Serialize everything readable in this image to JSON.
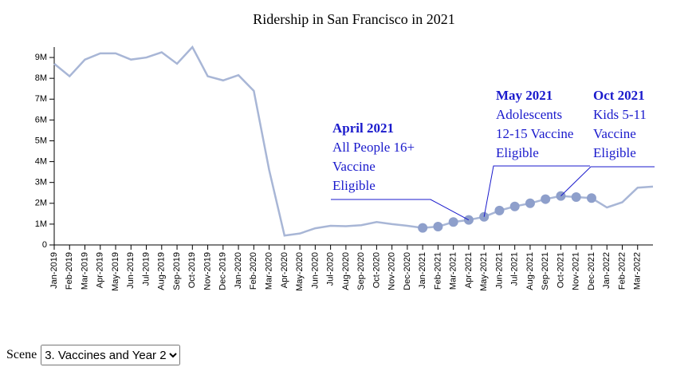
{
  "chart_data": {
    "type": "line",
    "title": "Ridership in San Francisco in 2021",
    "categories": [
      "Jan-2019",
      "Feb-2019",
      "Mar-2019",
      "Apr-2019",
      "May-2019",
      "Jun-2019",
      "Jul-2019",
      "Aug-2019",
      "Sep-2019",
      "Oct-2019",
      "Nov-2019",
      "Dec-2019",
      "Jan-2020",
      "Feb-2020",
      "Mar-2020",
      "Apr-2020",
      "May-2020",
      "Jun-2020",
      "Jul-2020",
      "Aug-2020",
      "Sep-2020",
      "Oct-2020",
      "Nov-2020",
      "Dec-2020",
      "Jan-2021",
      "Feb-2021",
      "Mar-2021",
      "Apr-2021",
      "May-2021",
      "Jun-2021",
      "Jul-2021",
      "Aug-2021",
      "Sep-2021",
      "Oct-2021",
      "Nov-2021",
      "Dec-2021",
      "Jan-2022",
      "Feb-2022",
      "Mar-2022",
      null
    ],
    "values": [
      8700000,
      8100000,
      8900000,
      9200000,
      9200000,
      8900000,
      9000000,
      9250000,
      8700000,
      9500000,
      8100000,
      7900000,
      8150000,
      7400000,
      3600000,
      450000,
      550000,
      800000,
      920000,
      900000,
      950000,
      1100000,
      1000000,
      920000,
      820000,
      880000,
      1100000,
      1200000,
      1350000,
      1650000,
      1850000,
      2000000,
      2200000,
      2350000,
      2300000,
      2250000,
      1800000,
      2050000,
      2750000,
      2800000
    ],
    "color": "#a8b6d6",
    "marker_color": "#8e9fcb",
    "markers_from": "Jan-2021",
    "markers_to": "Dec-2021",
    "ylim": [
      0,
      9500000
    ],
    "yticks": [
      0,
      {
        "value": 1000000,
        "label": "1M"
      },
      {
        "value": 2000000,
        "label": "2M"
      },
      {
        "value": 3000000,
        "label": "3M"
      },
      {
        "value": 4000000,
        "label": "4M"
      },
      {
        "value": 5000000,
        "label": "5M"
      },
      {
        "value": 6000000,
        "label": "6M"
      },
      {
        "value": 7000000,
        "label": "7M"
      },
      {
        "value": 8000000,
        "label": "8M"
      },
      {
        "value": 9000000,
        "label": "9M"
      }
    ],
    "annotations": [
      {
        "category": "Apr-2021",
        "title": "April 2021",
        "lines": [
          "All People 16+",
          "Vaccine",
          "Eligible"
        ]
      },
      {
        "category": "May-2021",
        "title": "May 2021",
        "lines": [
          "Adolescents",
          "12-15 Vaccine",
          "Eligible"
        ]
      },
      {
        "category": "Oct-2021",
        "title": "Oct 2021",
        "lines": [
          "Kids 5-11",
          "Vaccine",
          "Eligible"
        ]
      }
    ]
  },
  "controls": {
    "label": "Scene",
    "options": [
      "3. Vaccines and Year 2"
    ]
  }
}
